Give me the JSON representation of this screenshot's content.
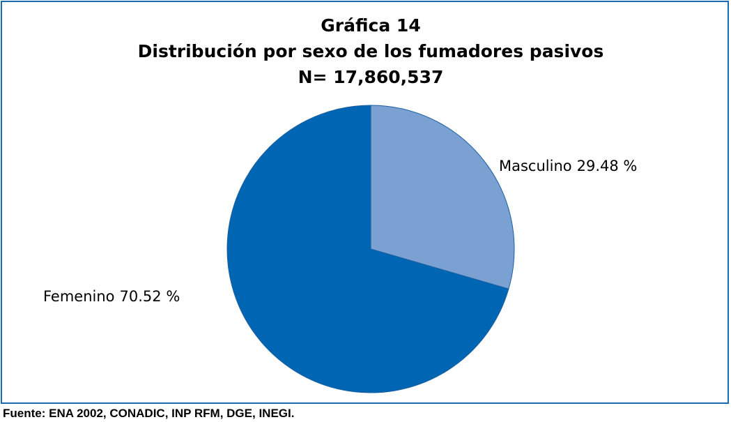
{
  "chart_data": {
    "type": "pie",
    "title": [
      "Gráfica 14",
      "Distribución por sexo de los fumadores pasivos",
      "N= 17,860,537"
    ],
    "categories": [
      "Masculino",
      "Femenino"
    ],
    "values": [
      29.48,
      70.52
    ],
    "value_labels": [
      "29.48 %",
      "70.52 %"
    ],
    "colors": [
      "#7ba0d2",
      "#0066b3"
    ],
    "source": "Fuente: ENA 2002, CONADIC, INP RFM, DGE, INEGI."
  }
}
